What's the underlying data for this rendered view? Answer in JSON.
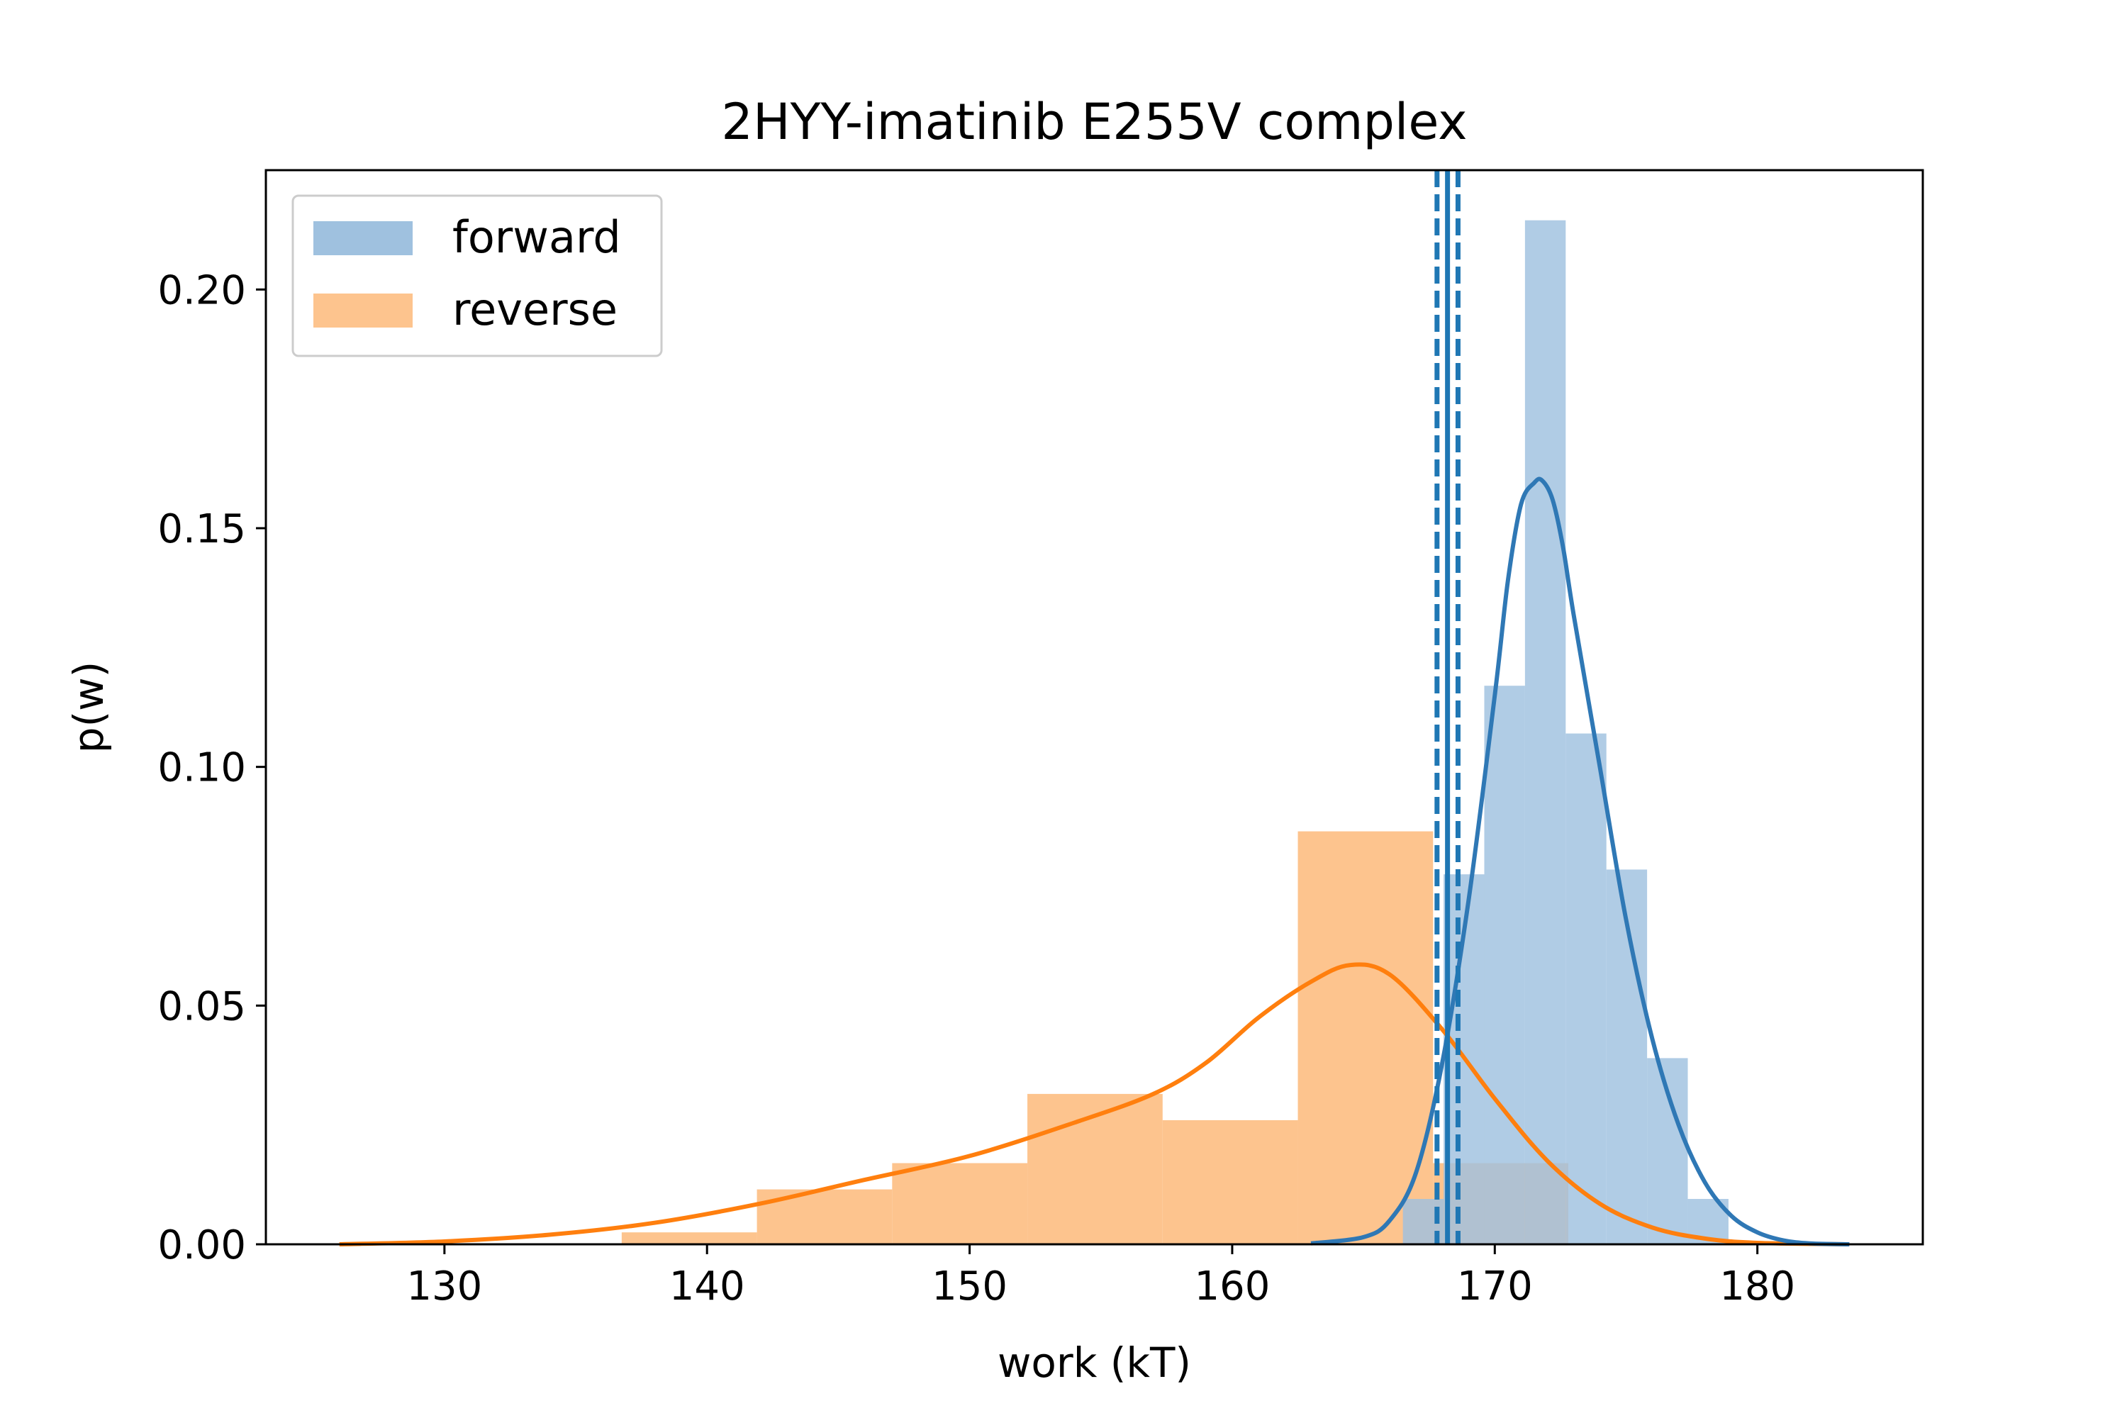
{
  "chart_data": {
    "type": "histogram",
    "title": "2HYY-imatinib E255V complex",
    "xlabel": "work (kT)",
    "ylabel": "p(w)",
    "xlim": [
      123.2,
      186.3
    ],
    "ylim": [
      0,
      0.225
    ],
    "xticks": [
      130,
      140,
      150,
      160,
      170,
      180
    ],
    "yticks": [
      0.0,
      0.05,
      0.1,
      0.15,
      0.2
    ],
    "xtick_labels": [
      "130",
      "140",
      "150",
      "160",
      "170",
      "180"
    ],
    "ytick_labels": [
      "0.00",
      "0.05",
      "0.10",
      "0.15",
      "0.20"
    ],
    "legend": {
      "position": "upper left",
      "entries": [
        "forward",
        "reverse"
      ]
    },
    "grid": false,
    "colors": {
      "forward_bar": "#9fc1df",
      "forward_line": "#2f78b5",
      "reverse_bar": "#fdc48e",
      "reverse_line": "#ff7f0e",
      "overlap": "#d2ae88",
      "vline": "#1f77b4"
    },
    "series": [
      {
        "name": "forward",
        "bins": [
          [
            166.5,
            168.05,
            0.0095
          ],
          [
            168.05,
            169.6,
            0.0775
          ],
          [
            169.6,
            171.15,
            0.117
          ],
          [
            171.15,
            172.7,
            0.2145
          ],
          [
            172.7,
            174.25,
            0.107
          ],
          [
            174.25,
            175.8,
            0.0785
          ],
          [
            175.8,
            177.35,
            0.039
          ],
          [
            177.35,
            178.9,
            0.0095
          ]
        ],
        "kde_x": [
          163.0,
          165.0,
          166.0,
          167.0,
          168.0,
          169.0,
          170.0,
          170.5,
          171.0,
          171.5,
          171.8,
          172.2,
          172.6,
          173.0,
          174.0,
          175.0,
          176.0,
          177.0,
          178.0,
          179.0,
          180.0,
          181.0,
          182.0,
          183.5
        ],
        "kde_y": [
          0.0002,
          0.0015,
          0.005,
          0.015,
          0.038,
          0.072,
          0.115,
          0.139,
          0.155,
          0.1595,
          0.16,
          0.156,
          0.146,
          0.132,
          0.1,
          0.068,
          0.043,
          0.025,
          0.013,
          0.006,
          0.0025,
          0.0008,
          0.0002,
          0.0
        ]
      },
      {
        "name": "reverse",
        "bins": [
          [
            136.75,
            141.9,
            0.0025
          ],
          [
            141.9,
            147.05,
            0.0115
          ],
          [
            147.05,
            152.2,
            0.017
          ],
          [
            152.2,
            157.35,
            0.0315
          ],
          [
            157.35,
            162.5,
            0.026
          ],
          [
            162.5,
            167.65,
            0.0865
          ],
          [
            167.65,
            172.8,
            0.017
          ]
        ],
        "kde_x": [
          126.0,
          130.0,
          134.0,
          138.0,
          142.0,
          146.0,
          150.0,
          154.0,
          157.0,
          159.0,
          161.0,
          163.0,
          164.5,
          166.0,
          168.0,
          170.0,
          172.0,
          174.0,
          176.0,
          178.0,
          180.0,
          183.5
        ],
        "kde_y": [
          0.0,
          0.0006,
          0.002,
          0.0045,
          0.0085,
          0.0135,
          0.0185,
          0.0255,
          0.0315,
          0.038,
          0.0475,
          0.055,
          0.0585,
          0.0565,
          0.045,
          0.0305,
          0.0175,
          0.0085,
          0.0035,
          0.0012,
          0.0003,
          0.0
        ]
      }
    ],
    "vlines": [
      {
        "x": 168.2,
        "style": "solid"
      },
      {
        "x": 167.8,
        "style": "dashed"
      },
      {
        "x": 168.6,
        "style": "dashed"
      }
    ]
  }
}
